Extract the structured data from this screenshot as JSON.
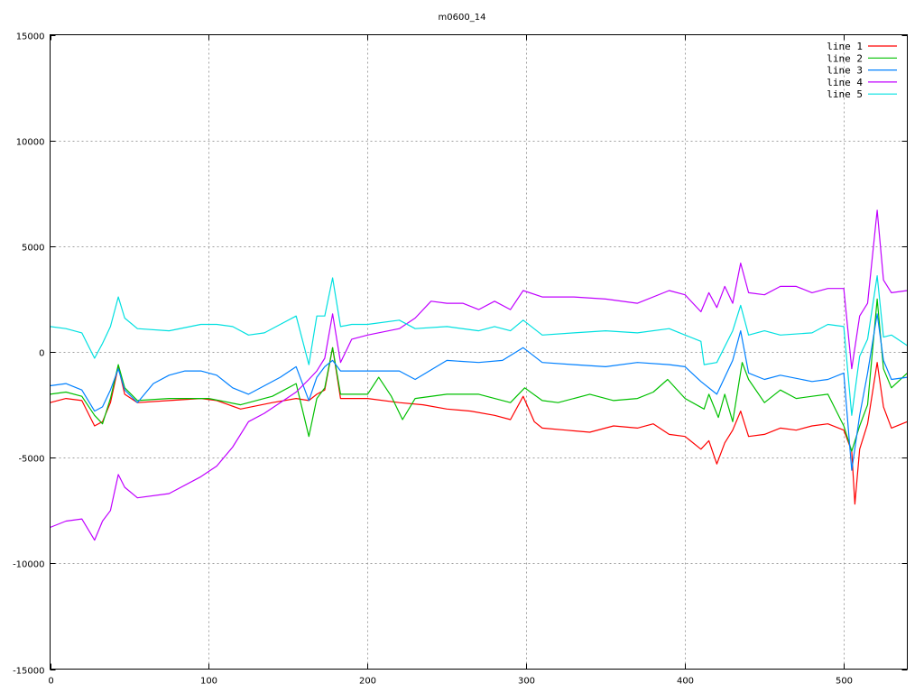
{
  "chart_data": {
    "type": "line",
    "title": "m0600_14",
    "xlabel": "",
    "ylabel": "",
    "xlim": [
      0,
      540
    ],
    "ylim": [
      -15000,
      15000
    ],
    "x_ticks": [
      0,
      100,
      200,
      300,
      400,
      500
    ],
    "y_ticks": [
      -15000,
      -10000,
      -5000,
      0,
      5000,
      10000,
      15000
    ],
    "grid": true,
    "legend_placement": "top-right",
    "series": [
      {
        "name": "line 1",
        "color": "#ff0000",
        "points": [
          [
            0,
            -2400
          ],
          [
            10,
            -2200
          ],
          [
            20,
            -2300
          ],
          [
            28,
            -3500
          ],
          [
            33,
            -3300
          ],
          [
            38,
            -2400
          ],
          [
            43,
            -700
          ],
          [
            47,
            -2000
          ],
          [
            55,
            -2400
          ],
          [
            75,
            -2300
          ],
          [
            95,
            -2200
          ],
          [
            105,
            -2300
          ],
          [
            120,
            -2700
          ],
          [
            140,
            -2400
          ],
          [
            155,
            -2200
          ],
          [
            163,
            -2300
          ],
          [
            168,
            -2000
          ],
          [
            173,
            -1800
          ],
          [
            178,
            200
          ],
          [
            183,
            -2200
          ],
          [
            200,
            -2200
          ],
          [
            220,
            -2400
          ],
          [
            235,
            -2500
          ],
          [
            250,
            -2700
          ],
          [
            265,
            -2800
          ],
          [
            280,
            -3000
          ],
          [
            290,
            -3200
          ],
          [
            298,
            -2100
          ],
          [
            305,
            -3300
          ],
          [
            310,
            -3600
          ],
          [
            325,
            -3700
          ],
          [
            340,
            -3800
          ],
          [
            355,
            -3500
          ],
          [
            370,
            -3600
          ],
          [
            380,
            -3400
          ],
          [
            390,
            -3900
          ],
          [
            400,
            -4000
          ],
          [
            410,
            -4600
          ],
          [
            415,
            -4200
          ],
          [
            420,
            -5300
          ],
          [
            425,
            -4300
          ],
          [
            430,
            -3700
          ],
          [
            435,
            -2800
          ],
          [
            440,
            -4000
          ],
          [
            450,
            -3900
          ],
          [
            460,
            -3600
          ],
          [
            470,
            -3700
          ],
          [
            480,
            -3500
          ],
          [
            490,
            -3400
          ],
          [
            500,
            -3700
          ],
          [
            505,
            -4700
          ],
          [
            507,
            -7200
          ],
          [
            510,
            -4600
          ],
          [
            515,
            -3400
          ],
          [
            521,
            -500
          ],
          [
            525,
            -2600
          ],
          [
            530,
            -3600
          ],
          [
            540,
            -3300
          ]
        ]
      },
      {
        "name": "line 2",
        "color": "#00c000",
        "points": [
          [
            0,
            -2000
          ],
          [
            10,
            -1900
          ],
          [
            20,
            -2100
          ],
          [
            28,
            -3000
          ],
          [
            33,
            -3400
          ],
          [
            38,
            -2200
          ],
          [
            43,
            -600
          ],
          [
            47,
            -1700
          ],
          [
            55,
            -2300
          ],
          [
            75,
            -2200
          ],
          [
            100,
            -2200
          ],
          [
            120,
            -2500
          ],
          [
            140,
            -2100
          ],
          [
            155,
            -1500
          ],
          [
            163,
            -4000
          ],
          [
            168,
            -2200
          ],
          [
            173,
            -1700
          ],
          [
            178,
            200
          ],
          [
            183,
            -2000
          ],
          [
            200,
            -2000
          ],
          [
            207,
            -1200
          ],
          [
            215,
            -2100
          ],
          [
            222,
            -3200
          ],
          [
            230,
            -2200
          ],
          [
            250,
            -2000
          ],
          [
            270,
            -2000
          ],
          [
            290,
            -2400
          ],
          [
            299,
            -1700
          ],
          [
            310,
            -2300
          ],
          [
            320,
            -2400
          ],
          [
            340,
            -2000
          ],
          [
            355,
            -2300
          ],
          [
            370,
            -2200
          ],
          [
            380,
            -1900
          ],
          [
            389,
            -1300
          ],
          [
            400,
            -2200
          ],
          [
            412,
            -2700
          ],
          [
            415,
            -2000
          ],
          [
            421,
            -3100
          ],
          [
            425,
            -2000
          ],
          [
            430,
            -3300
          ],
          [
            436,
            -500
          ],
          [
            440,
            -1300
          ],
          [
            450,
            -2400
          ],
          [
            460,
            -1800
          ],
          [
            470,
            -2200
          ],
          [
            480,
            -2100
          ],
          [
            490,
            -2000
          ],
          [
            500,
            -3500
          ],
          [
            505,
            -4700
          ],
          [
            510,
            -3500
          ],
          [
            515,
            -2500
          ],
          [
            521,
            2500
          ],
          [
            525,
            -800
          ],
          [
            530,
            -1700
          ],
          [
            540,
            -1000
          ]
        ]
      },
      {
        "name": "line 3",
        "color": "#0080ff",
        "points": [
          [
            0,
            -1600
          ],
          [
            10,
            -1500
          ],
          [
            20,
            -1800
          ],
          [
            28,
            -2800
          ],
          [
            33,
            -2600
          ],
          [
            38,
            -1800
          ],
          [
            43,
            -800
          ],
          [
            47,
            -1800
          ],
          [
            55,
            -2400
          ],
          [
            65,
            -1500
          ],
          [
            75,
            -1100
          ],
          [
            85,
            -900
          ],
          [
            95,
            -900
          ],
          [
            105,
            -1100
          ],
          [
            115,
            -1700
          ],
          [
            125,
            -2000
          ],
          [
            135,
            -1600
          ],
          [
            145,
            -1200
          ],
          [
            155,
            -700
          ],
          [
            163,
            -2300
          ],
          [
            168,
            -1200
          ],
          [
            173,
            -700
          ],
          [
            178,
            -400
          ],
          [
            183,
            -900
          ],
          [
            200,
            -900
          ],
          [
            220,
            -900
          ],
          [
            230,
            -1300
          ],
          [
            250,
            -400
          ],
          [
            270,
            -500
          ],
          [
            285,
            -400
          ],
          [
            298,
            200
          ],
          [
            310,
            -500
          ],
          [
            330,
            -600
          ],
          [
            350,
            -700
          ],
          [
            370,
            -500
          ],
          [
            390,
            -600
          ],
          [
            400,
            -700
          ],
          [
            410,
            -1400
          ],
          [
            420,
            -2000
          ],
          [
            430,
            -400
          ],
          [
            435,
            1000
          ],
          [
            440,
            -1000
          ],
          [
            450,
            -1300
          ],
          [
            460,
            -1100
          ],
          [
            480,
            -1400
          ],
          [
            490,
            -1300
          ],
          [
            500,
            -1000
          ],
          [
            505,
            -5600
          ],
          [
            510,
            -3000
          ],
          [
            515,
            -1000
          ],
          [
            521,
            1800
          ],
          [
            525,
            -400
          ],
          [
            530,
            -1300
          ],
          [
            540,
            -1200
          ]
        ]
      },
      {
        "name": "line 4",
        "color": "#c000ff",
        "points": [
          [
            0,
            -8300
          ],
          [
            10,
            -8000
          ],
          [
            20,
            -7900
          ],
          [
            28,
            -8900
          ],
          [
            33,
            -8000
          ],
          [
            38,
            -7500
          ],
          [
            43,
            -5800
          ],
          [
            47,
            -6400
          ],
          [
            55,
            -6900
          ],
          [
            75,
            -6700
          ],
          [
            95,
            -5900
          ],
          [
            105,
            -5400
          ],
          [
            115,
            -4500
          ],
          [
            125,
            -3300
          ],
          [
            135,
            -2900
          ],
          [
            145,
            -2400
          ],
          [
            155,
            -1900
          ],
          [
            163,
            -1300
          ],
          [
            168,
            -900
          ],
          [
            173,
            -300
          ],
          [
            178,
            1800
          ],
          [
            183,
            -500
          ],
          [
            190,
            600
          ],
          [
            200,
            800
          ],
          [
            220,
            1100
          ],
          [
            230,
            1600
          ],
          [
            240,
            2400
          ],
          [
            250,
            2300
          ],
          [
            260,
            2300
          ],
          [
            270,
            2000
          ],
          [
            280,
            2400
          ],
          [
            290,
            2000
          ],
          [
            298,
            2900
          ],
          [
            310,
            2600
          ],
          [
            330,
            2600
          ],
          [
            350,
            2500
          ],
          [
            370,
            2300
          ],
          [
            390,
            2900
          ],
          [
            400,
            2700
          ],
          [
            410,
            1900
          ],
          [
            415,
            2800
          ],
          [
            420,
            2100
          ],
          [
            425,
            3100
          ],
          [
            430,
            2300
          ],
          [
            435,
            4200
          ],
          [
            440,
            2800
          ],
          [
            450,
            2700
          ],
          [
            460,
            3100
          ],
          [
            470,
            3100
          ],
          [
            480,
            2800
          ],
          [
            490,
            3000
          ],
          [
            500,
            3000
          ],
          [
            505,
            -800
          ],
          [
            510,
            1700
          ],
          [
            515,
            2300
          ],
          [
            521,
            6700
          ],
          [
            525,
            3400
          ],
          [
            530,
            2800
          ],
          [
            540,
            2900
          ]
        ]
      },
      {
        "name": "line 5",
        "color": "#00e0e0",
        "points": [
          [
            0,
            1200
          ],
          [
            10,
            1100
          ],
          [
            20,
            900
          ],
          [
            28,
            -300
          ],
          [
            33,
            400
          ],
          [
            38,
            1200
          ],
          [
            43,
            2600
          ],
          [
            47,
            1600
          ],
          [
            55,
            1100
          ],
          [
            75,
            1000
          ],
          [
            95,
            1300
          ],
          [
            105,
            1300
          ],
          [
            115,
            1200
          ],
          [
            125,
            800
          ],
          [
            135,
            900
          ],
          [
            145,
            1300
          ],
          [
            155,
            1700
          ],
          [
            163,
            -600
          ],
          [
            168,
            1700
          ],
          [
            173,
            1700
          ],
          [
            178,
            3500
          ],
          [
            183,
            1200
          ],
          [
            190,
            1300
          ],
          [
            200,
            1300
          ],
          [
            220,
            1500
          ],
          [
            230,
            1100
          ],
          [
            250,
            1200
          ],
          [
            270,
            1000
          ],
          [
            280,
            1200
          ],
          [
            290,
            1000
          ],
          [
            298,
            1500
          ],
          [
            310,
            800
          ],
          [
            330,
            900
          ],
          [
            350,
            1000
          ],
          [
            370,
            900
          ],
          [
            390,
            1100
          ],
          [
            400,
            800
          ],
          [
            410,
            500
          ],
          [
            412,
            -600
          ],
          [
            420,
            -500
          ],
          [
            430,
            1000
          ],
          [
            435,
            2200
          ],
          [
            440,
            800
          ],
          [
            450,
            1000
          ],
          [
            460,
            800
          ],
          [
            480,
            900
          ],
          [
            490,
            1300
          ],
          [
            500,
            1200
          ],
          [
            505,
            -3000
          ],
          [
            510,
            -200
          ],
          [
            515,
            600
          ],
          [
            521,
            3600
          ],
          [
            525,
            700
          ],
          [
            530,
            800
          ],
          [
            540,
            300
          ]
        ]
      }
    ]
  }
}
